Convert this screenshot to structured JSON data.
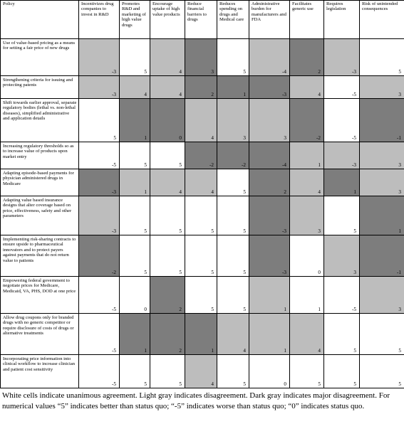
{
  "headers": [
    "Policy",
    "Incentivizes drug companies to invest in R&D",
    "Promotes R&D and marketing of high value drugs",
    "Encourage uptake of high value products",
    "Reduce financial barriers to drugs",
    "Reduces spending on drugs and Medical care",
    "Administrative burden for manufacturers and FDA",
    "Facilitates generic use",
    "Requires legislation",
    "Risk of unintended consequences"
  ],
  "rows": [
    {
      "policy": "Use of value-based pricing as a means for setting a fair price of new drugs",
      "cells": [
        {
          "value": "-3",
          "shade": "light"
        },
        {
          "value": "5",
          "shade": "white"
        },
        {
          "value": "4",
          "shade": "light"
        },
        {
          "value": "3",
          "shade": "dark"
        },
        {
          "value": "5",
          "shade": "white"
        },
        {
          "value": "-4",
          "shade": "light"
        },
        {
          "value": "2",
          "shade": "dark"
        },
        {
          "value": "-3",
          "shade": "light"
        },
        {
          "value": "5",
          "shade": "white"
        }
      ]
    },
    {
      "policy": "Strengthening criteria for issuing and protecting patents",
      "cells": [
        {
          "value": "-3",
          "shade": "light"
        },
        {
          "value": "4",
          "shade": "light"
        },
        {
          "value": "4",
          "shade": "light"
        },
        {
          "value": "2",
          "shade": "dark"
        },
        {
          "value": "1",
          "shade": "dark"
        },
        {
          "value": "-3",
          "shade": "dark"
        },
        {
          "value": "4",
          "shade": "light"
        },
        {
          "value": "-5",
          "shade": "white"
        },
        {
          "value": "3",
          "shade": "light"
        }
      ]
    },
    {
      "policy": "Shift towards earlier approval, separate regulatory bodies (lethal vs. non-lethal diseases), simplified administrative and application details",
      "cells": [
        {
          "value": "5",
          "shade": "white"
        },
        {
          "value": "1",
          "shade": "dark"
        },
        {
          "value": "0",
          "shade": "dark"
        },
        {
          "value": "4",
          "shade": "light"
        },
        {
          "value": "3",
          "shade": "light"
        },
        {
          "value": "3",
          "shade": "light"
        },
        {
          "value": "-2",
          "shade": "dark"
        },
        {
          "value": "-5",
          "shade": "white"
        },
        {
          "value": "-1",
          "shade": "dark"
        }
      ]
    },
    {
      "policy": "Increasing regulatory thresholds so as to increase value of products upon market entry",
      "cells": [
        {
          "value": "-5",
          "shade": "white"
        },
        {
          "value": "5",
          "shade": "white"
        },
        {
          "value": "5",
          "shade": "white"
        },
        {
          "value": "-2",
          "shade": "dark"
        },
        {
          "value": "-2",
          "shade": "dark"
        },
        {
          "value": "-4",
          "shade": "dark"
        },
        {
          "value": "1",
          "shade": "light"
        },
        {
          "value": "-3",
          "shade": "light"
        },
        {
          "value": "3",
          "shade": "light"
        }
      ]
    },
    {
      "policy": "Adapting episode-based payments for physician administered drugs in Medicare",
      "cells": [
        {
          "value": "-3",
          "shade": "dark"
        },
        {
          "value": "1",
          "shade": "light"
        },
        {
          "value": "4",
          "shade": "light"
        },
        {
          "value": "4",
          "shade": "light"
        },
        {
          "value": "5",
          "shade": "white"
        },
        {
          "value": "2",
          "shade": "dark"
        },
        {
          "value": "4",
          "shade": "light"
        },
        {
          "value": "1",
          "shade": "dark"
        },
        {
          "value": "3",
          "shade": "light"
        }
      ]
    },
    {
      "policy": "Adapting value based insurance designs that alter coverage based on price, effectiveness, safety and other parameters",
      "cells": [
        {
          "value": "-3",
          "shade": "light"
        },
        {
          "value": "5",
          "shade": "white"
        },
        {
          "value": "5",
          "shade": "white"
        },
        {
          "value": "5",
          "shade": "white"
        },
        {
          "value": "5",
          "shade": "white"
        },
        {
          "value": "-3",
          "shade": "dark"
        },
        {
          "value": "3",
          "shade": "light"
        },
        {
          "value": "5",
          "shade": "white"
        },
        {
          "value": "1",
          "shade": "dark"
        }
      ]
    },
    {
      "policy": "Implementing risk-sharing contracts to ensure upside to pharmaceutical innovators and to protect payers against payments that do not return value to patients",
      "cells": [
        {
          "value": "-2",
          "shade": "dark"
        },
        {
          "value": "5",
          "shade": "white"
        },
        {
          "value": "5",
          "shade": "white"
        },
        {
          "value": "5",
          "shade": "white"
        },
        {
          "value": "5",
          "shade": "white"
        },
        {
          "value": "-3",
          "shade": "dark"
        },
        {
          "value": "0",
          "shade": "white"
        },
        {
          "value": "3",
          "shade": "light"
        },
        {
          "value": "-1",
          "shade": "dark"
        }
      ]
    },
    {
      "policy": "Empowering federal government to negotiate prices for Medicare, Medicaid, VA, PHS, DOD at one price",
      "cells": [
        {
          "value": "-5",
          "shade": "white"
        },
        {
          "value": "0",
          "shade": "white"
        },
        {
          "value": "2",
          "shade": "dark"
        },
        {
          "value": "5",
          "shade": "white"
        },
        {
          "value": "5",
          "shade": "white"
        },
        {
          "value": "1",
          "shade": "light"
        },
        {
          "value": "1",
          "shade": "white"
        },
        {
          "value": "-5",
          "shade": "white"
        },
        {
          "value": "3",
          "shade": "light"
        }
      ]
    },
    {
      "policy": "Allow drug coupons only for branded drugs with no generic competitor or require disclosure of costs of drugs or alternative treatments",
      "cells": [
        {
          "value": "-5",
          "shade": "white"
        },
        {
          "value": "1",
          "shade": "dark"
        },
        {
          "value": "2",
          "shade": "dark"
        },
        {
          "value": "1",
          "shade": "dark"
        },
        {
          "value": "4",
          "shade": "light"
        },
        {
          "value": "1",
          "shade": "light"
        },
        {
          "value": "4",
          "shade": "light"
        },
        {
          "value": "5",
          "shade": "white"
        },
        {
          "value": "5",
          "shade": "white"
        }
      ]
    },
    {
      "policy": "Incorporating price information into clinical workflow to increase clinician and patient cost sensitivity",
      "cells": [
        {
          "value": "-5",
          "shade": "white"
        },
        {
          "value": "5",
          "shade": "white"
        },
        {
          "value": "5",
          "shade": "white"
        },
        {
          "value": "4",
          "shade": "light"
        },
        {
          "value": "5",
          "shade": "white"
        },
        {
          "value": "0",
          "shade": "white"
        },
        {
          "value": "5",
          "shade": "white"
        },
        {
          "value": "5",
          "shade": "white"
        },
        {
          "value": "5",
          "shade": "white"
        }
      ]
    }
  ],
  "caption": "White cells indicate unanimous agreement.  Light gray indicates disagreement.  Dark gray indicates major disagreement.  For numerical values “5” indicates better than status quo; “-5” indicates worse than status quo; “0” indicates status quo."
}
